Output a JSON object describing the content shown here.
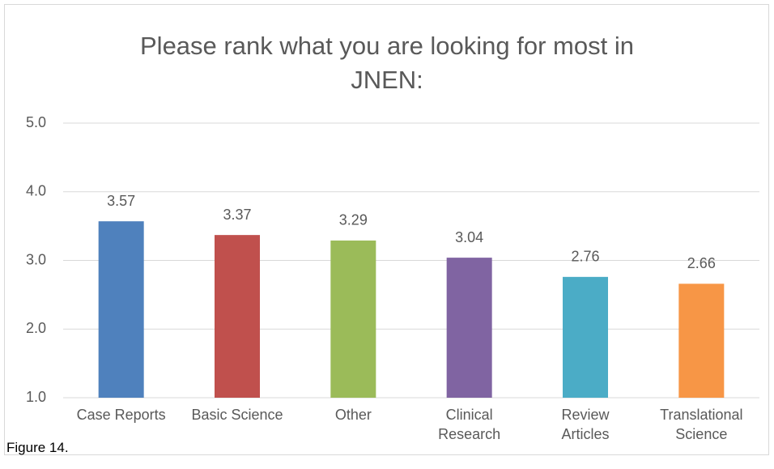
{
  "chart_data": {
    "type": "bar",
    "title": "Please rank what you are looking for most in JNEN:",
    "categories": [
      "Case Reports",
      "Basic Science",
      "Other",
      "Clinical\nResearch",
      "Review\nArticles",
      "Translational\nScience"
    ],
    "values": [
      3.57,
      3.37,
      3.29,
      3.04,
      2.76,
      2.66
    ],
    "colors": [
      "#4f81bd",
      "#c0504d",
      "#9bbb59",
      "#8064a2",
      "#4bacc6",
      "#f79646"
    ],
    "ylim": [
      1,
      5
    ],
    "yticks": [
      {
        "value": 1,
        "label": "1.0"
      },
      {
        "value": 2,
        "label": "2.0"
      },
      {
        "value": 3,
        "label": "3.0"
      },
      {
        "value": 4,
        "label": "4.0"
      },
      {
        "value": 5,
        "label": "5.0"
      }
    ],
    "grid": true,
    "annotation": "Figure 14."
  }
}
